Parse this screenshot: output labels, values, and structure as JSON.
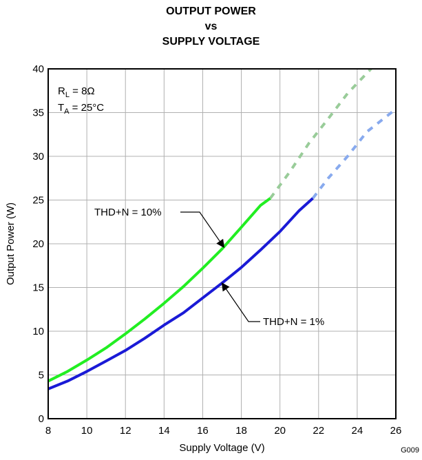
{
  "chart_data": {
    "type": "line",
    "title": [
      "OUTPUT POWER",
      "vs",
      "SUPPLY VOLTAGE"
    ],
    "xlabel": "Supply Voltage (V)",
    "ylabel": "Output Power (W)",
    "xlim": [
      8,
      26
    ],
    "ylim": [
      0,
      40
    ],
    "xticks": [
      8,
      10,
      12,
      14,
      16,
      18,
      20,
      22,
      24,
      26
    ],
    "yticks": [
      0,
      5,
      10,
      15,
      20,
      25,
      30,
      35,
      40
    ],
    "grid": true,
    "conditions": {
      "rl": "R_L = 8Ω",
      "ta": "T_A = 25°C"
    },
    "series": [
      {
        "name": "THD+N = 10%",
        "color": "#22ee22",
        "dashed_color": "#99cc99",
        "values": [
          [
            8,
            4.3
          ],
          [
            9,
            5.4
          ],
          [
            10,
            6.7
          ],
          [
            11,
            8.1
          ],
          [
            12,
            9.7
          ],
          [
            13,
            11.4
          ],
          [
            14,
            13.2
          ],
          [
            15,
            15.1
          ],
          [
            16,
            17.2
          ],
          [
            17,
            19.4
          ],
          [
            18,
            21.9
          ],
          [
            19,
            24.4
          ],
          [
            19.5,
            25.2
          ]
        ],
        "extrapolated": [
          [
            19.5,
            25.2
          ],
          [
            20.5,
            28.2
          ],
          [
            21.5,
            31.5
          ],
          [
            22.5,
            34.3
          ],
          [
            23.5,
            37.2
          ],
          [
            24.8,
            40.2
          ]
        ]
      },
      {
        "name": "THD+N = 1%",
        "color": "#1a1ad6",
        "dashed_color": "#88aaee",
        "values": [
          [
            8,
            3.4
          ],
          [
            9,
            4.3
          ],
          [
            10,
            5.4
          ],
          [
            11,
            6.6
          ],
          [
            12,
            7.8
          ],
          [
            13,
            9.2
          ],
          [
            14,
            10.7
          ],
          [
            15,
            12.1
          ],
          [
            16,
            13.8
          ],
          [
            17,
            15.5
          ],
          [
            18,
            17.3
          ],
          [
            19,
            19.3
          ],
          [
            20,
            21.4
          ],
          [
            21,
            23.8
          ],
          [
            21.7,
            25.2
          ]
        ],
        "extrapolated": [
          [
            21.7,
            25.2
          ],
          [
            22.5,
            27.5
          ],
          [
            23.5,
            30.0
          ],
          [
            24.5,
            32.8
          ],
          [
            26,
            35.4
          ]
        ]
      }
    ],
    "annotations": [
      {
        "text": "THD+N = 10%",
        "points_to": [
          17.1,
          19.6
        ]
      },
      {
        "text": "THD+N = 1%",
        "points_to": [
          17.0,
          15.5
        ]
      }
    ],
    "figure_code": "G009"
  }
}
